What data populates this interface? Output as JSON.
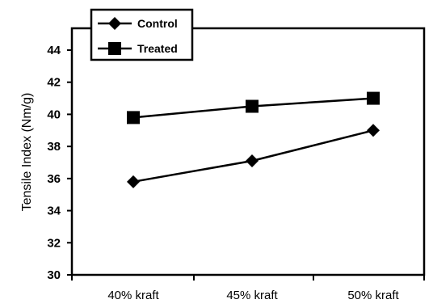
{
  "chart_data": {
    "type": "line",
    "title": "",
    "xlabel": "",
    "ylabel": "Tensile Index (Nm/g)",
    "categories": [
      "40% kraft",
      "45% kraft",
      "50% kraft"
    ],
    "ylim": [
      30,
      44
    ],
    "yticks": [
      30,
      32,
      34,
      36,
      38,
      40,
      42,
      44
    ],
    "grid": false,
    "legend": "top-left",
    "series": [
      {
        "name": "Control",
        "marker": "diamond",
        "color": "#000000",
        "values": [
          35.8,
          37.1,
          39.0
        ]
      },
      {
        "name": "Treated",
        "marker": "square",
        "color": "#000000",
        "values": [
          39.8,
          40.5,
          41.0
        ]
      }
    ]
  }
}
